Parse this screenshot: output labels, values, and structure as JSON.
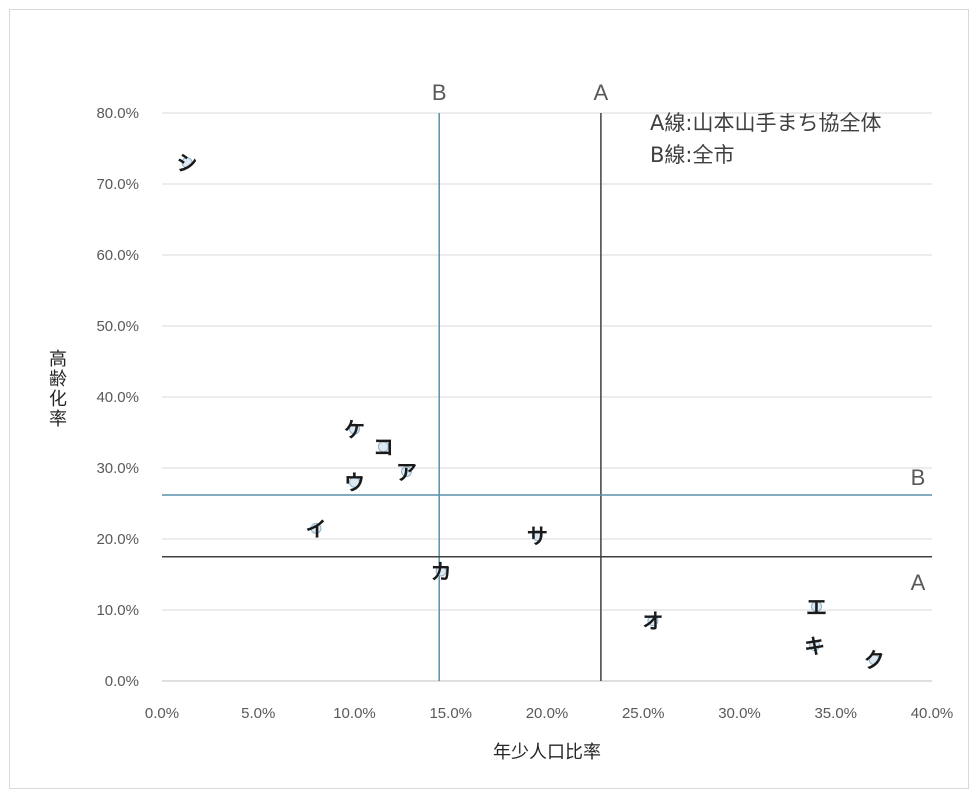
{
  "chart_data": {
    "type": "scatter",
    "title": "",
    "xlabel": "年少人口比率",
    "ylabel": "高齢化率",
    "xlim": [
      0,
      40
    ],
    "ylim": [
      0,
      80
    ],
    "x_ticks": [
      "0.0%",
      "5.0%",
      "10.0%",
      "15.0%",
      "20.0%",
      "25.0%",
      "30.0%",
      "35.0%",
      "40.0%"
    ],
    "y_ticks": [
      "0.0%",
      "10.0%",
      "20.0%",
      "30.0%",
      "40.0%",
      "50.0%",
      "60.0%",
      "70.0%",
      "80.0%"
    ],
    "grid": "horizontal",
    "points": [
      {
        "label": "シ",
        "x": 1.3,
        "y": 73.0
      },
      {
        "label": "ケ",
        "x": 10.0,
        "y": 35.5
      },
      {
        "label": "コ",
        "x": 11.5,
        "y": 33.0
      },
      {
        "label": "ア",
        "x": 12.7,
        "y": 29.5
      },
      {
        "label": "ウ",
        "x": 10.0,
        "y": 28.0
      },
      {
        "label": "イ",
        "x": 8.0,
        "y": 21.5
      },
      {
        "label": "サ",
        "x": 19.5,
        "y": 20.5
      },
      {
        "label": "カ",
        "x": 14.5,
        "y": 15.5
      },
      {
        "label": "オ",
        "x": 25.5,
        "y": 8.5
      },
      {
        "label": "エ",
        "x": 34.0,
        "y": 10.5
      },
      {
        "label": "キ",
        "x": 33.9,
        "y": 5.0
      },
      {
        "label": "ク",
        "x": 37.0,
        "y": 3.0
      }
    ],
    "reference_lines": [
      {
        "name": "B",
        "axis": "x",
        "value": 14.4,
        "color": "#5b8fa8"
      },
      {
        "name": "A",
        "axis": "x",
        "value": 22.8,
        "color": "#404040"
      },
      {
        "name": "B",
        "axis": "y",
        "value": 26.2,
        "color": "#5b8fa8"
      },
      {
        "name": "A",
        "axis": "y",
        "value": 17.5,
        "color": "#404040"
      }
    ],
    "legend": {
      "placement": "top-right",
      "entries": [
        "A線:山本山手まち協全体",
        "B線:全市"
      ]
    }
  }
}
